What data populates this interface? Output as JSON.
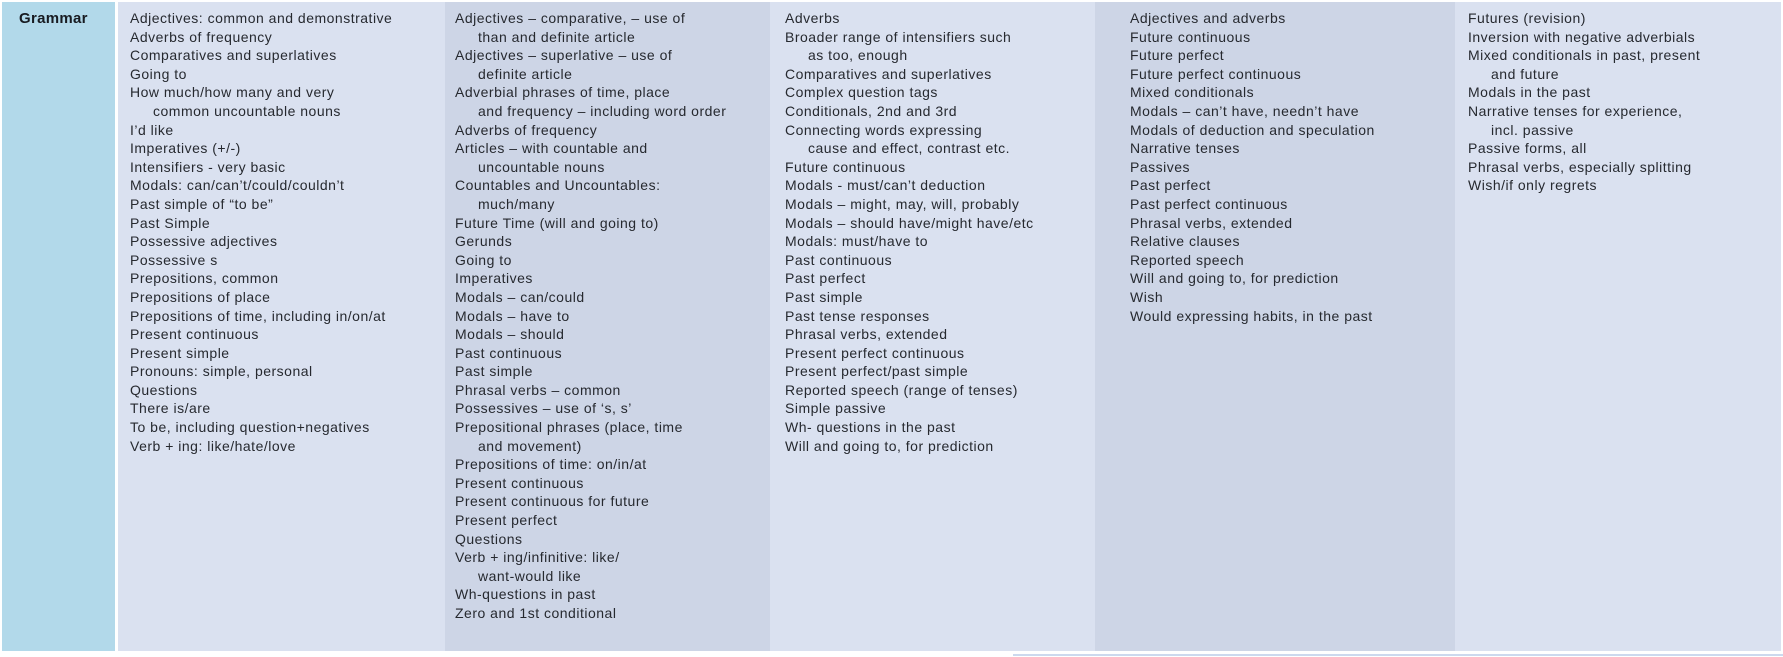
{
  "table": {
    "row_header": "Grammar",
    "columns": [
      {
        "items": [
          "Adjectives: common and demonstrative",
          "Adverbs of frequency",
          "Comparatives and superlatives",
          "Going to",
          "How much/how many and very\ncommon uncountable nouns",
          "I’d like",
          "Imperatives (+/-)",
          "Intensifiers - very basic",
          "Modals: can/can’t/could/couldn’t",
          "Past simple of “to be”",
          "Past Simple",
          "Possessive adjectives",
          "Possessive s",
          "Prepositions, common",
          "Prepositions of place",
          "Prepositions of time, including in/on/at",
          "Present continuous",
          "Present simple",
          "Pronouns: simple, personal",
          "Questions",
          "There is/are",
          "To be, including question+negatives",
          "Verb + ing: like/hate/love"
        ]
      },
      {
        "items": [
          "Adjectives – comparative, – use of\nthan and definite article",
          "Adjectives – superlative – use of\ndefinite article",
          "Adverbial phrases of time, place\nand frequency – including word order",
          "Adverbs of frequency",
          "Articles – with countable and\nuncountable nouns",
          "Countables and Uncountables:\nmuch/many",
          "Future Time (will and going to)",
          "Gerunds",
          "Going to",
          "Imperatives",
          "Modals – can/could",
          "Modals – have to",
          "Modals – should",
          "Past continuous",
          "Past simple",
          "Phrasal verbs – common",
          "Possessives – use of ‘s, s’",
          "Prepositional phrases (place, time\nand movement)",
          "Prepositions of time: on/in/at",
          "Present continuous",
          "Present continuous for future",
          "Present perfect",
          "Questions",
          "Verb + ing/infinitive: like/\nwant-would like",
          "Wh-questions in past",
          "Zero and 1st conditional"
        ]
      },
      {
        "items": [
          "Adverbs",
          "Broader range of intensifiers such\nas too, enough",
          "Comparatives and superlatives",
          "Complex question tags",
          "Conditionals, 2nd and 3rd",
          "Connecting words expressing\ncause and effect, contrast etc.",
          "Future continuous",
          "Modals - must/can’t deduction",
          "Modals – might, may, will, probably",
          "Modals – should have/might have/etc",
          "Modals: must/have to",
          "Past continuous",
          "Past perfect",
          "Past simple",
          "Past tense responses",
          "Phrasal verbs, extended",
          "Present perfect continuous",
          "Present perfect/past simple",
          "Reported speech (range of tenses)",
          "Simple passive",
          "Wh- questions in the past",
          "Will and going to, for prediction"
        ]
      },
      {
        "items": [
          "Adjectives and adverbs",
          "Future continuous",
          "Future perfect",
          "Future perfect continuous",
          "Mixed conditionals",
          "Modals – can’t have, needn’t have",
          "Modals of deduction and speculation",
          "Narrative tenses",
          "Passives",
          "Past perfect",
          "Past perfect continuous",
          "Phrasal verbs, extended",
          "Relative clauses",
          "Reported speech",
          "Will and going to, for prediction",
          "Wish",
          "Would expressing habits, in the past"
        ]
      },
      {
        "items": [
          "Futures (revision)",
          "Inversion with negative adverbials",
          "Mixed conditionals in past, present\nand future",
          "Modals in the past",
          "Narrative tenses for experience,\nincl. passive",
          "Passive forms, all",
          "Phrasal verbs, especially splitting",
          "Wish/if only regrets"
        ]
      }
    ]
  },
  "colors": {
    "header_cell_bg": "#b2d9ea",
    "column_bg_light": "#dae1f0",
    "column_bg_dark": "#cdd5e6",
    "text": "#26292f",
    "bottom_line": "#ccd9ee"
  }
}
